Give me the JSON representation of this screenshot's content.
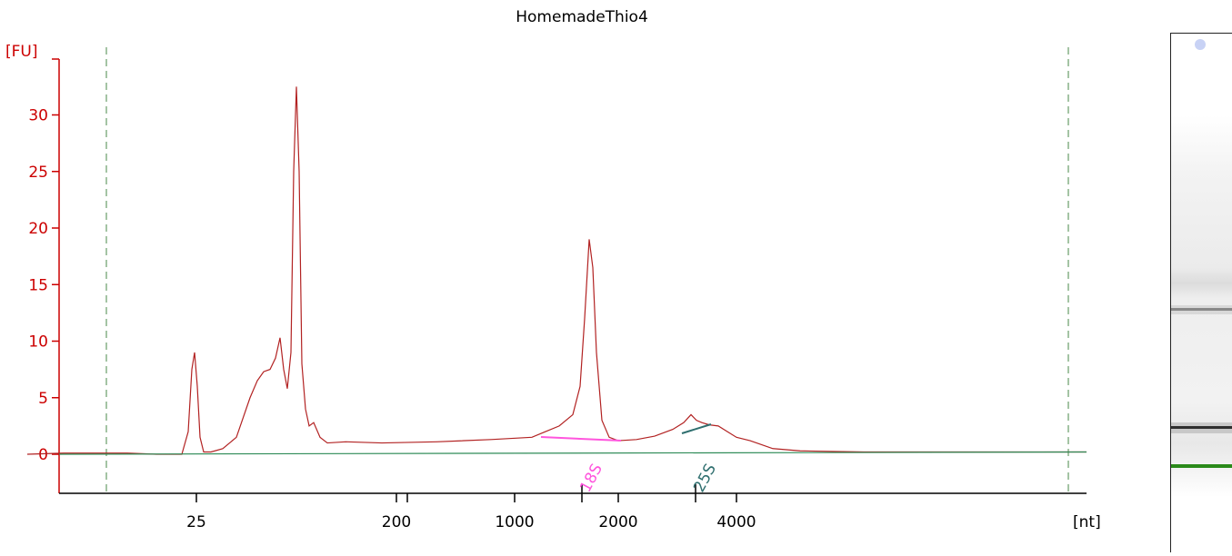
{
  "title": "HomemadeThio4",
  "chart_data": {
    "type": "line",
    "title": "HomemadeThio4",
    "ylabel": "[FU]",
    "xlabel": "[nt]",
    "ylim": [
      -3,
      35
    ],
    "y_ticks": [
      0,
      5,
      10,
      15,
      20,
      25,
      30
    ],
    "x_tick_labels": [
      "25",
      "200",
      "1000",
      "2000",
      "4000"
    ],
    "grid": false,
    "series": [
      {
        "color": "#b22222",
        "x": [
          30,
          70,
          105,
          140,
          172,
          200,
          207,
          211,
          214,
          217,
          220,
          224,
          232,
          245,
          260,
          275,
          283,
          290,
          297,
          303,
          308,
          312,
          316,
          320,
          323,
          326,
          329,
          332,
          336,
          340,
          345,
          352,
          360,
          380,
          420,
          480,
          540,
          585,
          600,
          615,
          630,
          638,
          643,
          648,
          652,
          656,
          662,
          670,
          680,
          700,
          720,
          740,
          752,
          760,
          766,
          772,
          780,
          790,
          800,
          810,
          825,
          850,
          880,
          950,
          1050,
          1150,
          1195
        ],
        "y": [
          0.0,
          0.1,
          0.1,
          0.1,
          0.0,
          0.0,
          2.0,
          7.5,
          9.0,
          6.0,
          1.5,
          0.2,
          0.2,
          0.5,
          1.5,
          5.0,
          6.5,
          7.3,
          7.5,
          8.5,
          10.3,
          7.5,
          5.8,
          9.0,
          25.0,
          32.5,
          25.0,
          8.0,
          4.0,
          2.5,
          2.8,
          1.5,
          1.0,
          1.1,
          1.0,
          1.1,
          1.3,
          1.5,
          2.0,
          2.5,
          3.5,
          6.0,
          12.0,
          19.0,
          16.5,
          9.0,
          3.0,
          1.5,
          1.2,
          1.3,
          1.6,
          2.2,
          2.8,
          3.5,
          3.0,
          2.8,
          2.6,
          2.5,
          2.0,
          1.5,
          1.2,
          0.5,
          0.3,
          0.2,
          0.2,
          0.2,
          0.2
        ]
      },
      {
        "color": "#2e8b57",
        "x": [
          65,
          1195
        ],
        "y": [
          0.0,
          0.2
        ]
      }
    ],
    "annotations": [
      {
        "text": "18S",
        "color": "#ff55dd",
        "x": 655,
        "y": -1.5
      },
      {
        "text": "25S",
        "color": "#2f6f6f",
        "x": 780,
        "y": -1.5
      }
    ]
  }
}
